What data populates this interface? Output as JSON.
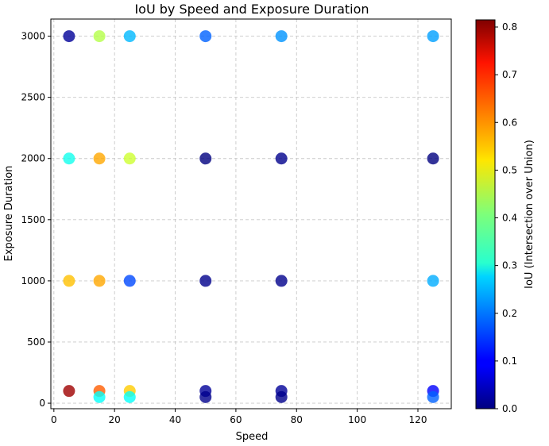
{
  "chart_data": {
    "type": "scatter",
    "title": "IoU by Speed and Exposure Duration",
    "xlabel": "Speed",
    "ylabel": "Exposure Duration",
    "xlim": [
      -1,
      131
    ],
    "ylim": [
      -45,
      3140
    ],
    "xticks": [
      0,
      20,
      40,
      60,
      80,
      100,
      120
    ],
    "yticks": [
      0,
      500,
      1000,
      1500,
      2000,
      2500,
      3000
    ],
    "grid": true,
    "colormap": "jet",
    "colorbar": {
      "label": "IoU (Intersection over Union)",
      "min": 0.0,
      "max": 0.815,
      "ticks": [
        0.0,
        0.1,
        0.2,
        0.3,
        0.4,
        0.5,
        0.6,
        0.7,
        0.8
      ]
    },
    "points": [
      {
        "x": 5,
        "y": 3000,
        "iou": 0.02
      },
      {
        "x": 15,
        "y": 3000,
        "iou": 0.45
      },
      {
        "x": 25,
        "y": 3000,
        "iou": 0.25
      },
      {
        "x": 50,
        "y": 3000,
        "iou": 0.18
      },
      {
        "x": 75,
        "y": 3000,
        "iou": 0.22
      },
      {
        "x": 125,
        "y": 3000,
        "iou": 0.23
      },
      {
        "x": 5,
        "y": 2000,
        "iou": 0.32
      },
      {
        "x": 15,
        "y": 2000,
        "iou": 0.58
      },
      {
        "x": 25,
        "y": 2000,
        "iou": 0.47
      },
      {
        "x": 50,
        "y": 2000,
        "iou": 0.0
      },
      {
        "x": 75,
        "y": 2000,
        "iou": 0.01
      },
      {
        "x": 125,
        "y": 2000,
        "iou": 0.0
      },
      {
        "x": 5,
        "y": 1000,
        "iou": 0.56
      },
      {
        "x": 15,
        "y": 1000,
        "iou": 0.58
      },
      {
        "x": 25,
        "y": 1000,
        "iou": 0.16
      },
      {
        "x": 50,
        "y": 1000,
        "iou": 0.01
      },
      {
        "x": 75,
        "y": 1000,
        "iou": 0.01
      },
      {
        "x": 125,
        "y": 1000,
        "iou": 0.24
      },
      {
        "x": 5,
        "y": 100,
        "iou": 0.79
      },
      {
        "x": 15,
        "y": 100,
        "iou": 0.64
      },
      {
        "x": 25,
        "y": 100,
        "iou": 0.55
      },
      {
        "x": 50,
        "y": 100,
        "iou": 0.02
      },
      {
        "x": 75,
        "y": 100,
        "iou": 0.02
      },
      {
        "x": 125,
        "y": 100,
        "iou": 0.1
      },
      {
        "x": 15,
        "y": 50,
        "iou": 0.31
      },
      {
        "x": 25,
        "y": 50,
        "iou": 0.31
      },
      {
        "x": 50,
        "y": 50,
        "iou": 0.01
      },
      {
        "x": 75,
        "y": 50,
        "iou": 0.01
      },
      {
        "x": 125,
        "y": 50,
        "iou": 0.18
      }
    ]
  }
}
